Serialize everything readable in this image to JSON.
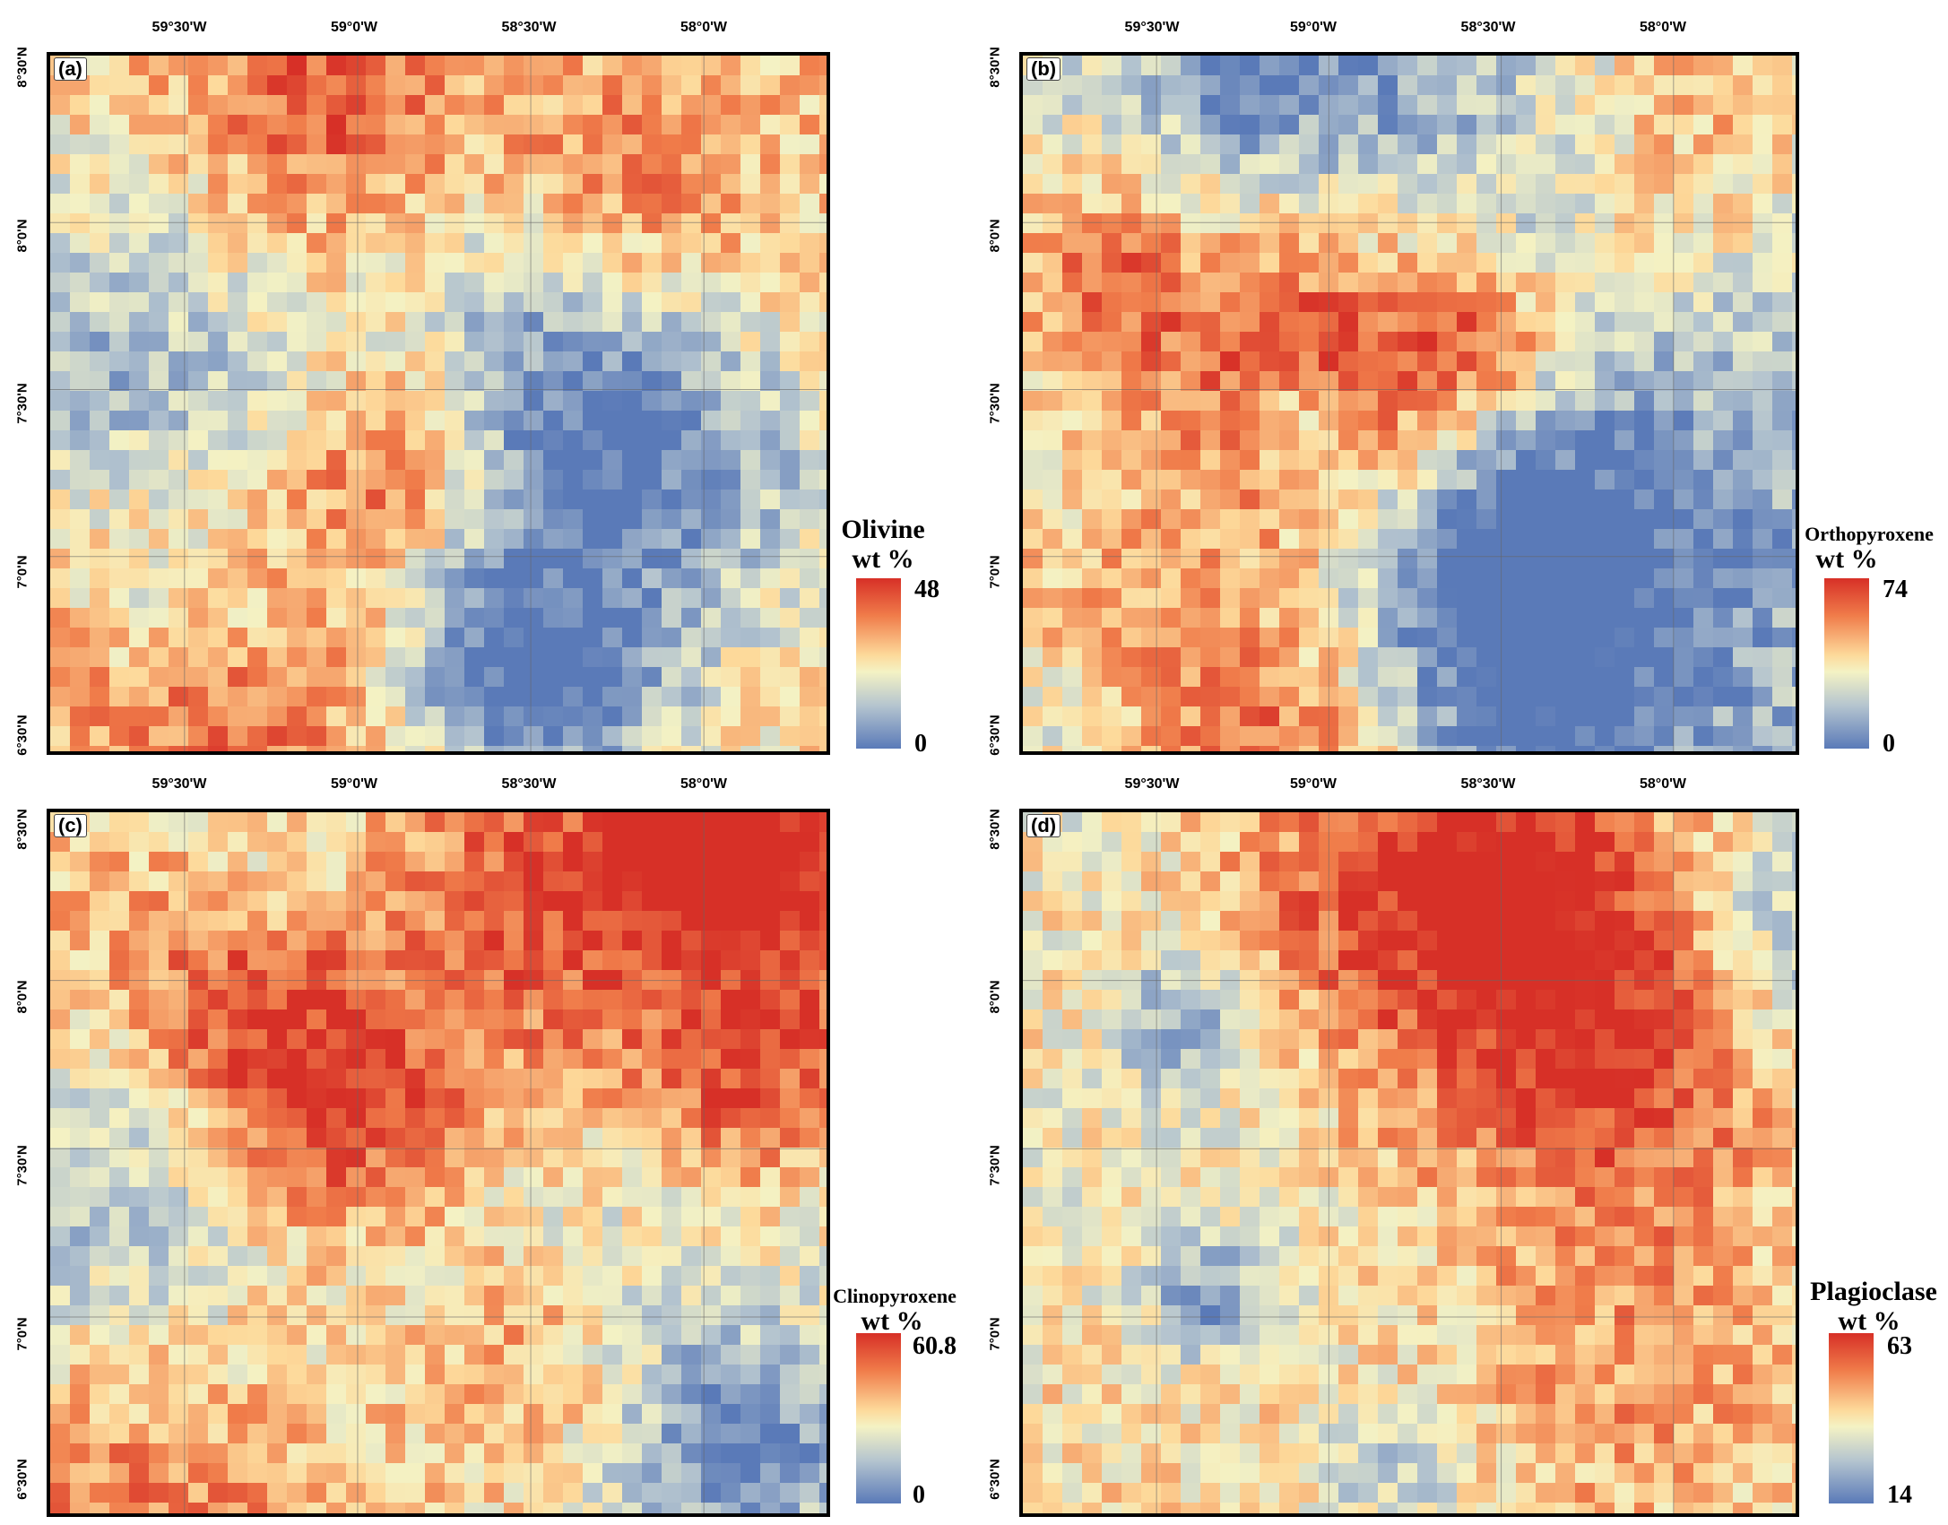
{
  "lon_labels": [
    "59°30'W",
    "59°0'W",
    "58°30'W",
    "58°0'W"
  ],
  "lat_labels": [
    "8°30'N",
    "8°0'N",
    "7°30'N",
    "7°0'N",
    "6°30'N"
  ],
  "panels": [
    {
      "id": "a",
      "label": "(a)",
      "mineral": "Olivine",
      "unit": "wt %",
      "max": "48",
      "min": "0",
      "seed": 11,
      "bias": 0.62
    },
    {
      "id": "b",
      "label": "(b)",
      "mineral": "Orthopyroxene",
      "unit": "wt %",
      "max": "74",
      "min": "0",
      "seed": 29,
      "bias": 0.3
    },
    {
      "id": "c",
      "label": "(c)",
      "mineral": "Clinopyroxene",
      "unit": "wt %",
      "max": "60.8",
      "min": "0",
      "seed": 47,
      "bias": 0.5
    },
    {
      "id": "d",
      "label": "(d)",
      "mineral": "Plagioclase",
      "unit": "wt %",
      "max": "63",
      "min": "14",
      "seed": 83,
      "bias": 0.48
    }
  ],
  "colors": {
    "high": "#d73027",
    "mid_high": "#f07c4a",
    "mid": "#f4f2c4",
    "low": "#5a7ab8",
    "frame": "#000000"
  }
}
